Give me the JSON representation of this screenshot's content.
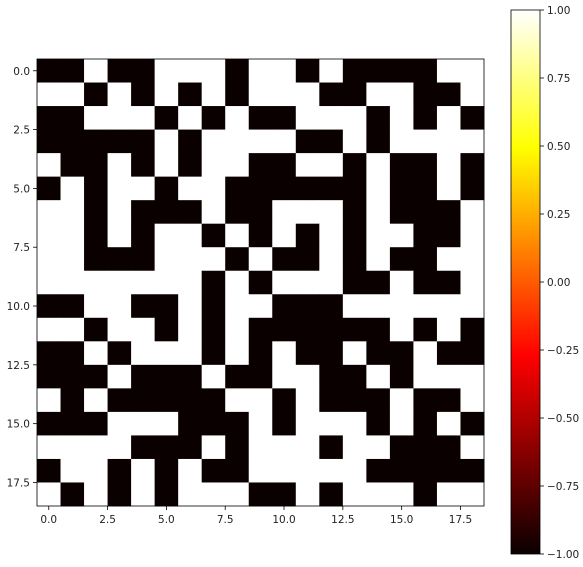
{
  "chart_data": {
    "type": "heatmap",
    "title": "",
    "xlabel": "",
    "ylabel": "",
    "rows": 19,
    "cols": 19,
    "xlim": [
      -0.5,
      18.5
    ],
    "ylim": [
      18.5,
      -0.5
    ],
    "x_ticks": [
      0.0,
      2.5,
      5.0,
      7.5,
      10.0,
      12.5,
      15.0,
      17.5
    ],
    "x_tick_labels": [
      "0.0",
      "2.5",
      "5.0",
      "7.5",
      "10.0",
      "12.5",
      "15.0",
      "17.5"
    ],
    "y_ticks": [
      0.0,
      2.5,
      5.0,
      7.5,
      10.0,
      12.5,
      15.0,
      17.5
    ],
    "y_tick_labels": [
      "0.0",
      "2.5",
      "5.0",
      "7.5",
      "10.0",
      "12.5",
      "15.0",
      "17.5"
    ],
    "colormap": "hot",
    "color_range": [
      -1,
      1
    ],
    "colorbar": {
      "ticks": [
        1.0,
        0.75,
        0.5,
        0.25,
        0.0,
        -0.25,
        -0.5,
        -0.75,
        -1.0
      ],
      "tick_labels": [
        "1.00",
        "0.75",
        "0.50",
        "0.25",
        "0.00",
        "−0.25",
        "−0.50",
        "−0.75",
        "−1.00"
      ]
    },
    "values": [
      [
        -1,
        -1,
        1,
        -1,
        -1,
        1,
        1,
        1,
        -1,
        1,
        1,
        -1,
        1,
        -1,
        -1,
        -1,
        -1,
        1,
        1
      ],
      [
        1,
        1,
        -1,
        1,
        -1,
        1,
        -1,
        1,
        -1,
        1,
        1,
        1,
        -1,
        -1,
        1,
        1,
        -1,
        -1,
        1
      ],
      [
        -1,
        -1,
        1,
        1,
        1,
        -1,
        1,
        -1,
        1,
        -1,
        -1,
        1,
        1,
        1,
        -1,
        1,
        -1,
        1,
        -1
      ],
      [
        -1,
        -1,
        -1,
        -1,
        -1,
        1,
        -1,
        1,
        1,
        1,
        1,
        -1,
        -1,
        1,
        -1,
        1,
        1,
        1,
        1
      ],
      [
        1,
        -1,
        -1,
        1,
        -1,
        1,
        -1,
        1,
        1,
        -1,
        -1,
        1,
        1,
        -1,
        1,
        -1,
        -1,
        1,
        -1
      ],
      [
        -1,
        1,
        -1,
        1,
        1,
        -1,
        1,
        1,
        -1,
        -1,
        -1,
        -1,
        -1,
        -1,
        1,
        -1,
        -1,
        1,
        -1
      ],
      [
        1,
        1,
        -1,
        1,
        -1,
        -1,
        -1,
        1,
        -1,
        -1,
        1,
        1,
        1,
        -1,
        1,
        -1,
        -1,
        -1,
        1
      ],
      [
        1,
        1,
        -1,
        1,
        -1,
        1,
        1,
        -1,
        1,
        -1,
        1,
        -1,
        1,
        -1,
        1,
        1,
        -1,
        -1,
        1
      ],
      [
        1,
        1,
        -1,
        -1,
        -1,
        1,
        1,
        1,
        -1,
        1,
        -1,
        -1,
        1,
        -1,
        1,
        -1,
        -1,
        1,
        1
      ],
      [
        1,
        1,
        1,
        1,
        1,
        1,
        1,
        -1,
        1,
        -1,
        1,
        1,
        1,
        -1,
        -1,
        1,
        -1,
        -1,
        1
      ],
      [
        -1,
        -1,
        1,
        1,
        -1,
        -1,
        1,
        -1,
        1,
        1,
        -1,
        -1,
        -1,
        1,
        1,
        1,
        1,
        1,
        1
      ],
      [
        1,
        1,
        -1,
        1,
        1,
        -1,
        1,
        -1,
        1,
        -1,
        -1,
        -1,
        -1,
        -1,
        -1,
        1,
        -1,
        1,
        -1
      ],
      [
        -1,
        -1,
        1,
        -1,
        1,
        1,
        1,
        -1,
        1,
        -1,
        1,
        -1,
        -1,
        1,
        -1,
        -1,
        1,
        -1,
        -1
      ],
      [
        -1,
        -1,
        -1,
        1,
        -1,
        -1,
        -1,
        1,
        -1,
        -1,
        1,
        1,
        -1,
        -1,
        1,
        -1,
        1,
        1,
        1
      ],
      [
        1,
        -1,
        1,
        -1,
        -1,
        -1,
        -1,
        -1,
        1,
        1,
        -1,
        1,
        -1,
        -1,
        -1,
        1,
        -1,
        -1,
        1
      ],
      [
        -1,
        -1,
        -1,
        1,
        1,
        1,
        -1,
        -1,
        -1,
        1,
        -1,
        1,
        1,
        1,
        -1,
        1,
        -1,
        1,
        -1
      ],
      [
        1,
        1,
        1,
        1,
        -1,
        -1,
        -1,
        1,
        -1,
        1,
        1,
        1,
        -1,
        1,
        1,
        -1,
        -1,
        -1,
        1
      ],
      [
        -1,
        1,
        1,
        -1,
        1,
        -1,
        1,
        -1,
        -1,
        1,
        1,
        1,
        1,
        1,
        -1,
        -1,
        -1,
        -1,
        -1
      ],
      [
        1,
        -1,
        1,
        -1,
        1,
        -1,
        1,
        1,
        1,
        -1,
        -1,
        1,
        -1,
        1,
        1,
        1,
        -1,
        1,
        1
      ]
    ]
  }
}
